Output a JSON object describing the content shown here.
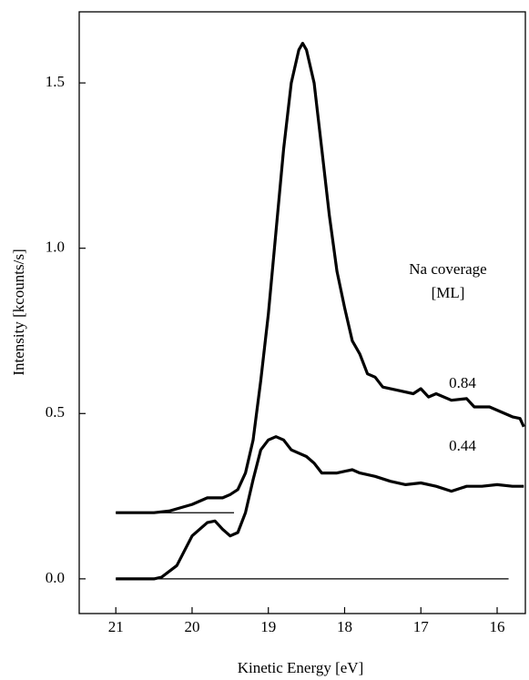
{
  "chart_data": {
    "type": "line",
    "x_label": "Kinetic Energy [eV]",
    "y_label": "Intensity [kcounts/s]",
    "legend_title": [
      "Na coverage",
      "[ML]"
    ],
    "xlim": [
      21.48,
      15.63
    ],
    "ylim": [
      -0.105,
      1.715
    ],
    "xticks": [
      21,
      20,
      19,
      18,
      17,
      16
    ],
    "yticks": [
      {
        "value": 0,
        "label": "0.0"
      },
      0.5,
      {
        "value": 1,
        "label": "1.0"
      },
      1.5
    ],
    "series": [
      {
        "name": "0.84",
        "color": "#000000",
        "x": [
          21.0,
          20.5,
          20.3,
          20.0,
          19.8,
          19.6,
          19.5,
          19.4,
          19.3,
          19.2,
          19.1,
          19.0,
          18.9,
          18.8,
          18.7,
          18.6,
          18.55,
          18.5,
          18.4,
          18.3,
          18.2,
          18.1,
          18.0,
          17.9,
          17.8,
          17.7,
          17.6,
          17.5,
          17.3,
          17.1,
          17.0,
          16.9,
          16.8,
          16.6,
          16.4,
          16.3,
          16.1,
          16.0,
          15.8,
          15.7,
          15.65
        ],
        "values": [
          0.2,
          0.2,
          0.205,
          0.225,
          0.245,
          0.245,
          0.255,
          0.27,
          0.32,
          0.42,
          0.6,
          0.8,
          1.05,
          1.3,
          1.5,
          1.6,
          1.62,
          1.6,
          1.5,
          1.3,
          1.1,
          0.93,
          0.82,
          0.72,
          0.68,
          0.62,
          0.61,
          0.58,
          0.57,
          0.56,
          0.575,
          0.55,
          0.56,
          0.54,
          0.545,
          0.52,
          0.52,
          0.51,
          0.49,
          0.485,
          0.46
        ]
      },
      {
        "name": "0.44",
        "color": "#000000",
        "x": [
          21.0,
          20.5,
          20.4,
          20.2,
          20.0,
          19.8,
          19.7,
          19.6,
          19.5,
          19.4,
          19.3,
          19.2,
          19.1,
          19.0,
          18.9,
          18.8,
          18.7,
          18.5,
          18.4,
          18.3,
          18.1,
          17.9,
          17.8,
          17.6,
          17.4,
          17.2,
          17.0,
          16.8,
          16.6,
          16.4,
          16.2,
          16.0,
          15.8,
          15.65
        ],
        "values": [
          0.0,
          0.0,
          0.005,
          0.04,
          0.13,
          0.17,
          0.175,
          0.15,
          0.13,
          0.14,
          0.2,
          0.3,
          0.39,
          0.42,
          0.43,
          0.42,
          0.39,
          0.37,
          0.35,
          0.32,
          0.32,
          0.33,
          0.32,
          0.31,
          0.295,
          0.285,
          0.29,
          0.28,
          0.265,
          0.28,
          0.28,
          0.285,
          0.28,
          0.28
        ]
      }
    ],
    "baselines": [
      {
        "y": 0.2,
        "x": [
          21.0,
          19.45
        ]
      },
      {
        "y": 0,
        "x": [
          21.0,
          15.85
        ]
      }
    ]
  }
}
